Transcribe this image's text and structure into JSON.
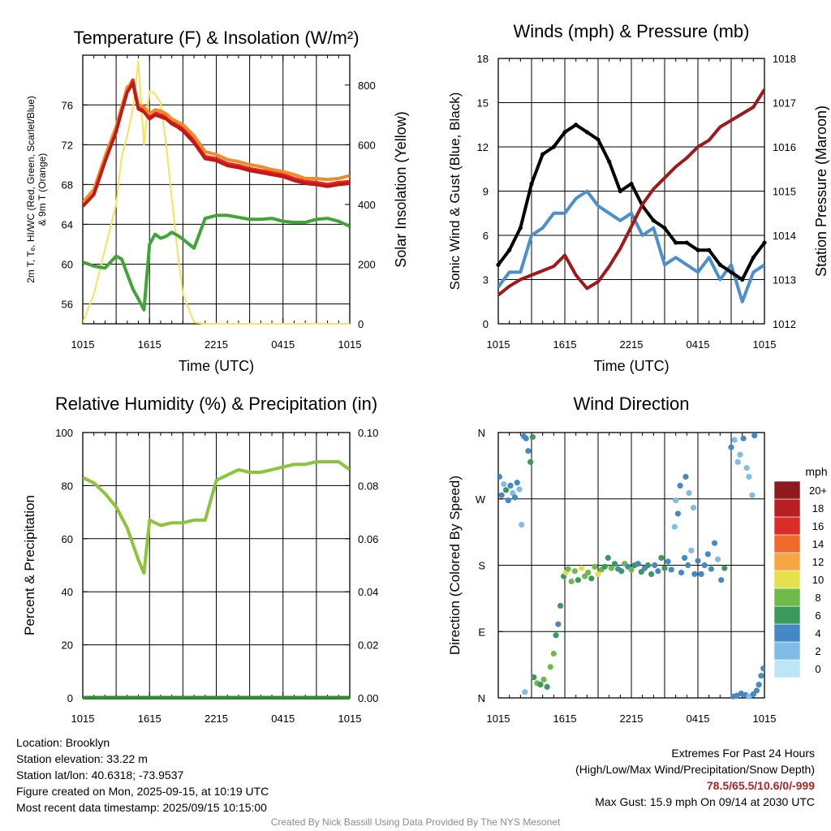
{
  "chart_data": [
    {
      "type": "line",
      "title": "Temperature (F) & Insolation (W/m²)",
      "xlabel": "Time (UTC)",
      "ylabel": "2m T, Tₑ, HI/WC (Red, Green, Scarlet/Blue) & 9m T (Orange)",
      "y2label": "Solar Insolation (Yellow)",
      "xticks": [
        "1015",
        "1615",
        "2215",
        "0415",
        "1015"
      ],
      "ylim": [
        54,
        81
      ],
      "yticks": [
        56,
        60,
        64,
        68,
        72,
        76
      ],
      "y2lim": [
        0,
        900
      ],
      "y2ticks": [
        0,
        200,
        400,
        600,
        800
      ],
      "x_hours": [
        0,
        1,
        2,
        3,
        3.5,
        4,
        4.5,
        5,
        5.5,
        6,
        6.5,
        7,
        7.5,
        8,
        8.5,
        9,
        10,
        11,
        12,
        13,
        14,
        15,
        16,
        17,
        18,
        19,
        20,
        21,
        22,
        23,
        24
      ],
      "series": [
        {
          "name": "2m T",
          "color": "#e8241c",
          "axis": "left",
          "values": [
            66.0,
            67.2,
            70.5,
            73.5,
            75.5,
            77.5,
            78.5,
            75.8,
            75.5,
            74.8,
            75.2,
            75.0,
            74.8,
            74.3,
            74.0,
            73.6,
            72.4,
            70.8,
            70.6,
            70.1,
            69.9,
            69.6,
            69.4,
            69.2,
            69.0,
            68.6,
            68.3,
            68.2,
            68.0,
            68.2,
            68.3
          ]
        },
        {
          "name": "9m T",
          "color": "#f28a2a",
          "axis": "left",
          "values": [
            66.2,
            67.5,
            70.8,
            73.8,
            75.8,
            77.8,
            78.2,
            76.0,
            75.8,
            75.1,
            75.5,
            75.4,
            75.1,
            74.6,
            74.3,
            74.0,
            72.9,
            71.3,
            71.0,
            70.5,
            70.3,
            70.0,
            69.8,
            69.5,
            69.3,
            69.0,
            68.6,
            68.6,
            68.5,
            68.6,
            68.9
          ]
        },
        {
          "name": "HI/WC",
          "color": "#c21818",
          "axis": "left",
          "values": [
            65.8,
            67.0,
            70.3,
            73.3,
            75.4,
            77.3,
            78.2,
            75.6,
            75.3,
            74.6,
            75.0,
            74.8,
            74.6,
            74.1,
            73.8,
            73.4,
            72.2,
            70.6,
            70.4,
            69.9,
            69.7,
            69.4,
            69.2,
            69.0,
            68.8,
            68.4,
            68.1,
            68.0,
            67.8,
            68.0,
            68.1
          ]
        },
        {
          "name": "Td",
          "color": "#3fa535",
          "axis": "left",
          "values": [
            60.2,
            59.8,
            59.6,
            60.8,
            60.5,
            59.0,
            57.5,
            56.5,
            55.4,
            62.0,
            63.0,
            62.6,
            62.8,
            63.2,
            62.9,
            62.5,
            61.6,
            64.6,
            64.9,
            64.9,
            64.7,
            64.5,
            64.5,
            64.6,
            64.3,
            64.2,
            64.2,
            64.5,
            64.6,
            64.3,
            63.8
          ]
        },
        {
          "name": "Solar Insolation",
          "color": "#f5e35a",
          "axis": "right",
          "values": [
            5,
            100,
            250,
            400,
            560,
            630,
            720,
            880,
            600,
            780,
            770,
            740,
            600,
            420,
            250,
            100,
            5,
            0,
            0,
            0,
            0,
            0,
            0,
            0,
            0,
            0,
            0,
            0,
            0,
            0,
            0
          ]
        }
      ]
    },
    {
      "type": "line",
      "title": "Winds (mph) & Pressure (mb)",
      "xlabel": "Time (UTC)",
      "ylabel": "Sonic Wind & Gust (Blue, Black)",
      "y2label": "Station Pressure (Maroon)",
      "xticks": [
        "1015",
        "1615",
        "2215",
        "0415",
        "1015"
      ],
      "ylim": [
        0,
        18
      ],
      "yticks": [
        0,
        3,
        6,
        9,
        12,
        15,
        18
      ],
      "y2lim": [
        1012,
        1018
      ],
      "y2ticks": [
        1012,
        1013,
        1014,
        1015,
        1016,
        1017,
        1018
      ],
      "x_hours": [
        0,
        1,
        2,
        3,
        4,
        5,
        6,
        7,
        8,
        9,
        10,
        11,
        12,
        13,
        14,
        15,
        16,
        17,
        18,
        19,
        20,
        21,
        22,
        23,
        24
      ],
      "series": [
        {
          "name": "Sonic Wind",
          "color": "#4a8fd0",
          "axis": "left",
          "values": [
            2.5,
            3.5,
            3.5,
            6.0,
            6.5,
            7.5,
            7.5,
            8.5,
            9.0,
            8.0,
            7.5,
            7.0,
            7.5,
            6.0,
            6.5,
            4.0,
            4.5,
            4.0,
            3.5,
            4.5,
            3.0,
            4.0,
            1.5,
            3.5,
            4.0
          ]
        },
        {
          "name": "Gust",
          "color": "#000000",
          "axis": "left",
          "values": [
            4.0,
            5.0,
            6.5,
            9.5,
            11.5,
            12.0,
            13.0,
            13.5,
            13.0,
            12.5,
            11.0,
            9.0,
            9.5,
            8.0,
            7.0,
            6.5,
            5.5,
            5.5,
            5.0,
            5.0,
            4.0,
            3.5,
            3.0,
            4.5,
            5.5
          ]
        },
        {
          "name": "Station Pressure",
          "color": "#a01818",
          "axis": "right",
          "values": [
            1012.65,
            1012.85,
            1013.0,
            1013.1,
            1013.2,
            1013.3,
            1013.55,
            1013.1,
            1012.8,
            1012.95,
            1013.3,
            1013.7,
            1014.2,
            1014.7,
            1015.05,
            1015.3,
            1015.55,
            1015.75,
            1016.0,
            1016.15,
            1016.45,
            1016.6,
            1016.75,
            1016.9,
            1017.3
          ]
        }
      ]
    },
    {
      "type": "line",
      "title": "Relative Humidity (%) & Precipitation (in)",
      "xlabel": "",
      "ylabel": "Percent & Precipitation",
      "xticks": [
        "1015",
        "1615",
        "2215",
        "0415",
        "1015"
      ],
      "ylim": [
        0,
        100
      ],
      "yticks": [
        0,
        20,
        40,
        60,
        80,
        100
      ],
      "y2lim": [
        0,
        0.1
      ],
      "y2ticks": [
        "0.00",
        "0.02",
        "0.04",
        "0.06",
        "0.08",
        "0.10"
      ],
      "x_hours": [
        0,
        1,
        2,
        3,
        4,
        5,
        5.5,
        6,
        7,
        8,
        9,
        10,
        11,
        12,
        13,
        14,
        15,
        16,
        17,
        18,
        19,
        20,
        21,
        22,
        23,
        24
      ],
      "series": [
        {
          "name": "Relative Humidity",
          "color": "#8cc43c",
          "axis": "left",
          "values": [
            83,
            81,
            77,
            72,
            64,
            52,
            47,
            67,
            65,
            66,
            66,
            67,
            67,
            82,
            84,
            86,
            85,
            85,
            86,
            87,
            88,
            88,
            89,
            89,
            89,
            86
          ]
        },
        {
          "name": "Precipitation",
          "color": "#2e8b2e",
          "axis": "right",
          "values": [
            0,
            0,
            0,
            0,
            0,
            0,
            0,
            0,
            0,
            0,
            0,
            0,
            0,
            0,
            0,
            0,
            0,
            0,
            0,
            0,
            0,
            0,
            0,
            0,
            0,
            0
          ]
        }
      ]
    },
    {
      "type": "scatter",
      "title": "Wind Direction",
      "ylabel": "Direction (Colored By Speed)",
      "xticks": [
        "1015",
        "1615",
        "2215",
        "0415",
        "1015"
      ],
      "yticks": [
        "N",
        "E",
        "S",
        "W",
        "N"
      ],
      "ylim": [
        0,
        360
      ],
      "colorbar_title": "mph",
      "colorbar_labels": [
        "0",
        "2",
        "4",
        "6",
        "8",
        "10",
        "12",
        "14",
        "16",
        "18",
        "20+"
      ],
      "colorbar_colors": [
        "#bde4f7",
        "#7fbde6",
        "#4488c6",
        "#3a9a5b",
        "#6dba4a",
        "#e6e04e",
        "#f6a545",
        "#ef6a2c",
        "#d92e27",
        "#b81f23",
        "#8e1a1e"
      ],
      "points": [
        {
          "x": 0.1,
          "dir": 300,
          "speed": 3
        },
        {
          "x": 0.3,
          "dir": 275,
          "speed": 4
        },
        {
          "x": 0.5,
          "dir": 290,
          "speed": 2
        },
        {
          "x": 0.7,
          "dir": 282,
          "speed": 5
        },
        {
          "x": 0.9,
          "dir": 268,
          "speed": 3
        },
        {
          "x": 1.1,
          "dir": 288,
          "speed": 4
        },
        {
          "x": 1.3,
          "dir": 278,
          "speed": 2
        },
        {
          "x": 1.5,
          "dir": 272,
          "speed": 4
        },
        {
          "x": 1.7,
          "dir": 292,
          "speed": 3
        },
        {
          "x": 1.9,
          "dir": 283,
          "speed": 1
        },
        {
          "x": 2.1,
          "dir": 235,
          "speed": 2
        },
        {
          "x": 2.3,
          "dir": 355,
          "speed": 3
        },
        {
          "x": 2.5,
          "dir": 352,
          "speed": 4
        },
        {
          "x": 2.7,
          "dir": 335,
          "speed": 4
        },
        {
          "x": 2.9,
          "dir": 320,
          "speed": 5
        },
        {
          "x": 3.1,
          "dir": 354,
          "speed": 6
        },
        {
          "x": 2.4,
          "dir": 8,
          "speed": 2
        },
        {
          "x": 3.2,
          "dir": 28,
          "speed": 5
        },
        {
          "x": 3.5,
          "dir": 20,
          "speed": 7
        },
        {
          "x": 3.8,
          "dir": 18,
          "speed": 6
        },
        {
          "x": 4.1,
          "dir": 25,
          "speed": 8
        },
        {
          "x": 4.4,
          "dir": 15,
          "speed": 6
        },
        {
          "x": 4.7,
          "dir": 42,
          "speed": 7
        },
        {
          "x": 5.0,
          "dir": 60,
          "speed": 7
        },
        {
          "x": 5.2,
          "dir": 85,
          "speed": 5
        },
        {
          "x": 5.4,
          "dir": 100,
          "speed": 4
        },
        {
          "x": 5.6,
          "dir": 125,
          "speed": 6
        },
        {
          "x": 5.9,
          "dir": 165,
          "speed": 6
        },
        {
          "x": 6.1,
          "dir": 170,
          "speed": 10
        },
        {
          "x": 6.3,
          "dir": 175,
          "speed": 7
        },
        {
          "x": 6.6,
          "dir": 158,
          "speed": 8
        },
        {
          "x": 6.9,
          "dir": 172,
          "speed": 8
        },
        {
          "x": 7.2,
          "dir": 160,
          "speed": 6
        },
        {
          "x": 7.5,
          "dir": 176,
          "speed": 9
        },
        {
          "x": 7.8,
          "dir": 165,
          "speed": 7
        },
        {
          "x": 8.1,
          "dir": 170,
          "speed": 8
        },
        {
          "x": 8.4,
          "dir": 162,
          "speed": 6
        },
        {
          "x": 8.7,
          "dir": 178,
          "speed": 7
        },
        {
          "x": 9.0,
          "dir": 168,
          "speed": 10
        },
        {
          "x": 9.3,
          "dir": 174,
          "speed": 7
        },
        {
          "x": 9.6,
          "dir": 178,
          "speed": 6
        },
        {
          "x": 9.9,
          "dir": 190,
          "speed": 6
        },
        {
          "x": 10.2,
          "dir": 176,
          "speed": 7
        },
        {
          "x": 10.5,
          "dir": 182,
          "speed": 6
        },
        {
          "x": 10.8,
          "dir": 175,
          "speed": 4
        },
        {
          "x": 11.1,
          "dir": 172,
          "speed": 6
        },
        {
          "x": 11.4,
          "dir": 182,
          "speed": 7
        },
        {
          "x": 11.7,
          "dir": 178,
          "speed": 4
        },
        {
          "x": 12.0,
          "dir": 174,
          "speed": 7
        },
        {
          "x": 12.3,
          "dir": 180,
          "speed": 6
        },
        {
          "x": 12.6,
          "dir": 182,
          "speed": 4
        },
        {
          "x": 12.9,
          "dir": 171,
          "speed": 6
        },
        {
          "x": 13.2,
          "dir": 176,
          "speed": 4
        },
        {
          "x": 13.5,
          "dir": 180,
          "speed": 6
        },
        {
          "x": 13.8,
          "dir": 168,
          "speed": 6
        },
        {
          "x": 14.1,
          "dir": 180,
          "speed": 4
        },
        {
          "x": 14.4,
          "dir": 172,
          "speed": 3
        },
        {
          "x": 14.7,
          "dir": 190,
          "speed": 5
        },
        {
          "x": 15.0,
          "dir": 176,
          "speed": 6
        },
        {
          "x": 15.3,
          "dir": 185,
          "speed": 4
        },
        {
          "x": 15.6,
          "dir": 174,
          "speed": 4
        },
        {
          "x": 15.9,
          "dir": 232,
          "speed": 2
        },
        {
          "x": 16.2,
          "dir": 250,
          "speed": 4
        },
        {
          "x": 16.5,
          "dir": 170,
          "speed": 4
        },
        {
          "x": 16.8,
          "dir": 190,
          "speed": 4
        },
        {
          "x": 17.1,
          "dir": 180,
          "speed": 3
        },
        {
          "x": 17.4,
          "dir": 200,
          "speed": 2
        },
        {
          "x": 17.7,
          "dir": 168,
          "speed": 4
        },
        {
          "x": 18.0,
          "dir": 186,
          "speed": 3
        },
        {
          "x": 18.3,
          "dir": 168,
          "speed": 4
        },
        {
          "x": 18.6,
          "dir": 180,
          "speed": 4
        },
        {
          "x": 18.9,
          "dir": 195,
          "speed": 3
        },
        {
          "x": 19.2,
          "dir": 175,
          "speed": 4
        },
        {
          "x": 19.5,
          "dir": 210,
          "speed": 3
        },
        {
          "x": 19.8,
          "dir": 188,
          "speed": 2
        },
        {
          "x": 20.1,
          "dir": 160,
          "speed": 3
        },
        {
          "x": 20.4,
          "dir": 176,
          "speed": 5
        },
        {
          "x": 16.0,
          "dir": 268,
          "speed": 2
        },
        {
          "x": 16.4,
          "dir": 288,
          "speed": 3
        },
        {
          "x": 16.9,
          "dir": 300,
          "speed": 3
        },
        {
          "x": 17.2,
          "dir": 278,
          "speed": 2
        },
        {
          "x": 17.6,
          "dir": 258,
          "speed": 1
        },
        {
          "x": 21.0,
          "dir": 340,
          "speed": 3
        },
        {
          "x": 21.3,
          "dir": 350,
          "speed": 2
        },
        {
          "x": 21.6,
          "dir": 320,
          "speed": 1
        },
        {
          "x": 21.8,
          "dir": 330,
          "speed": 2
        },
        {
          "x": 22.1,
          "dir": 352,
          "speed": 3
        },
        {
          "x": 22.4,
          "dir": 312,
          "speed": 1
        },
        {
          "x": 22.6,
          "dir": 300,
          "speed": 2
        },
        {
          "x": 22.9,
          "dir": 275,
          "speed": 1
        },
        {
          "x": 23.1,
          "dir": 356,
          "speed": 3
        },
        {
          "x": 21.2,
          "dir": 2,
          "speed": 3
        },
        {
          "x": 21.5,
          "dir": 3,
          "speed": 4
        },
        {
          "x": 21.9,
          "dir": 6,
          "speed": 4
        },
        {
          "x": 22.3,
          "dir": 4,
          "speed": 3
        },
        {
          "x": 22.6,
          "dir": 2,
          "speed": 1
        },
        {
          "x": 23.0,
          "dir": 5,
          "speed": 4
        },
        {
          "x": 23.3,
          "dir": 10,
          "speed": 3
        },
        {
          "x": 23.5,
          "dir": 18,
          "speed": 4
        },
        {
          "x": 23.7,
          "dir": 30,
          "speed": 4
        },
        {
          "x": 23.9,
          "dir": 40,
          "speed": 3
        }
      ]
    }
  ],
  "info_left": {
    "location": "Location: Brooklyn",
    "elevation": "Station elevation: 33.22 m",
    "latlon": "Station lat/lon: 40.6318; -73.9537",
    "created": "Figure created on Mon, 2025-09-15, at 10:19 UTC",
    "recent": "Most recent data timestamp: 2025/09/15 10:15:00"
  },
  "info_right": {
    "heading": "Extremes For Past 24 Hours",
    "subheading": "(High/Low/Max Wind/Precipitation/Snow Depth)",
    "values": "78.5/65.5/10.6/0/-999",
    "gust": "Max Gust: 15.9 mph On 09/14 at 2030 UTC"
  },
  "credit": "Created By Nick Bassill Using Data Provided By The NYS Mesonet"
}
